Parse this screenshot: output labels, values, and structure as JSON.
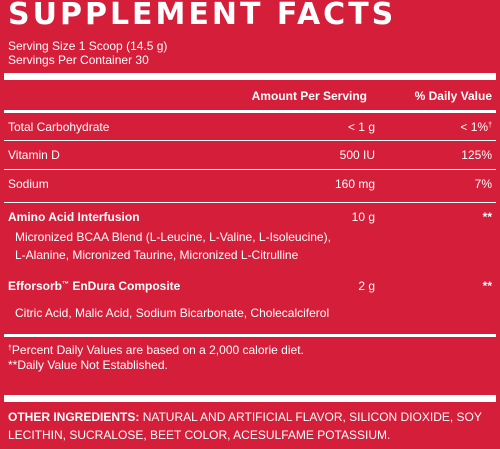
{
  "panel": {
    "title": "SUPPLEMENT FACTS",
    "serving_size": "Serving Size 1 Scoop (14.5 g)",
    "servings_per_container": "Servings Per Container 30",
    "header_amount": "Amount Per Serving",
    "header_dv": "% Daily Value"
  },
  "rows": [
    {
      "label": "Total Carbohydrate",
      "amount": "< 1 g",
      "dv": "< 1%",
      "dv_mark": "†"
    },
    {
      "label": "Vitamin D",
      "amount": "500 IU",
      "dv": "125%"
    },
    {
      "label": "Sodium",
      "amount": "160 mg",
      "dv": "7%"
    }
  ],
  "blends": [
    {
      "label": "Amino Acid Interfusion",
      "amount": "10 g",
      "dv": "**",
      "ingredients": [
        "Micronized BCAA Blend (L-Leucine, L-Valine, L-Isoleucine),",
        "L-Alanine, Micronized Taurine, Micronized L-Citrulline"
      ]
    },
    {
      "label_prefix": "Efforsorb",
      "label_mark": "™",
      "label_suffix": " EnDura Composite",
      "amount": "2 g",
      "dv": "**",
      "ingredients": [
        "Citric Acid, Malic Acid, Sodium Bicarbonate, Cholecalciferol"
      ]
    }
  ],
  "footnotes": {
    "mark": "†",
    "line1": "Percent Daily Values are based on a 2,000 calorie diet.",
    "line2": "**Daily Value Not Established."
  },
  "other_ingredients": {
    "label": "OTHER INGREDIENTS:",
    "text": "NATURAL AND ARTIFICIAL FLAVOR, SILICON DIOXIDE, SOY LECITHIN, SUCRALOSE, BEET COLOR, ACESULFAME POTASSIUM."
  },
  "colors": {
    "background": "#d51e3a",
    "text": "#ffffff"
  }
}
